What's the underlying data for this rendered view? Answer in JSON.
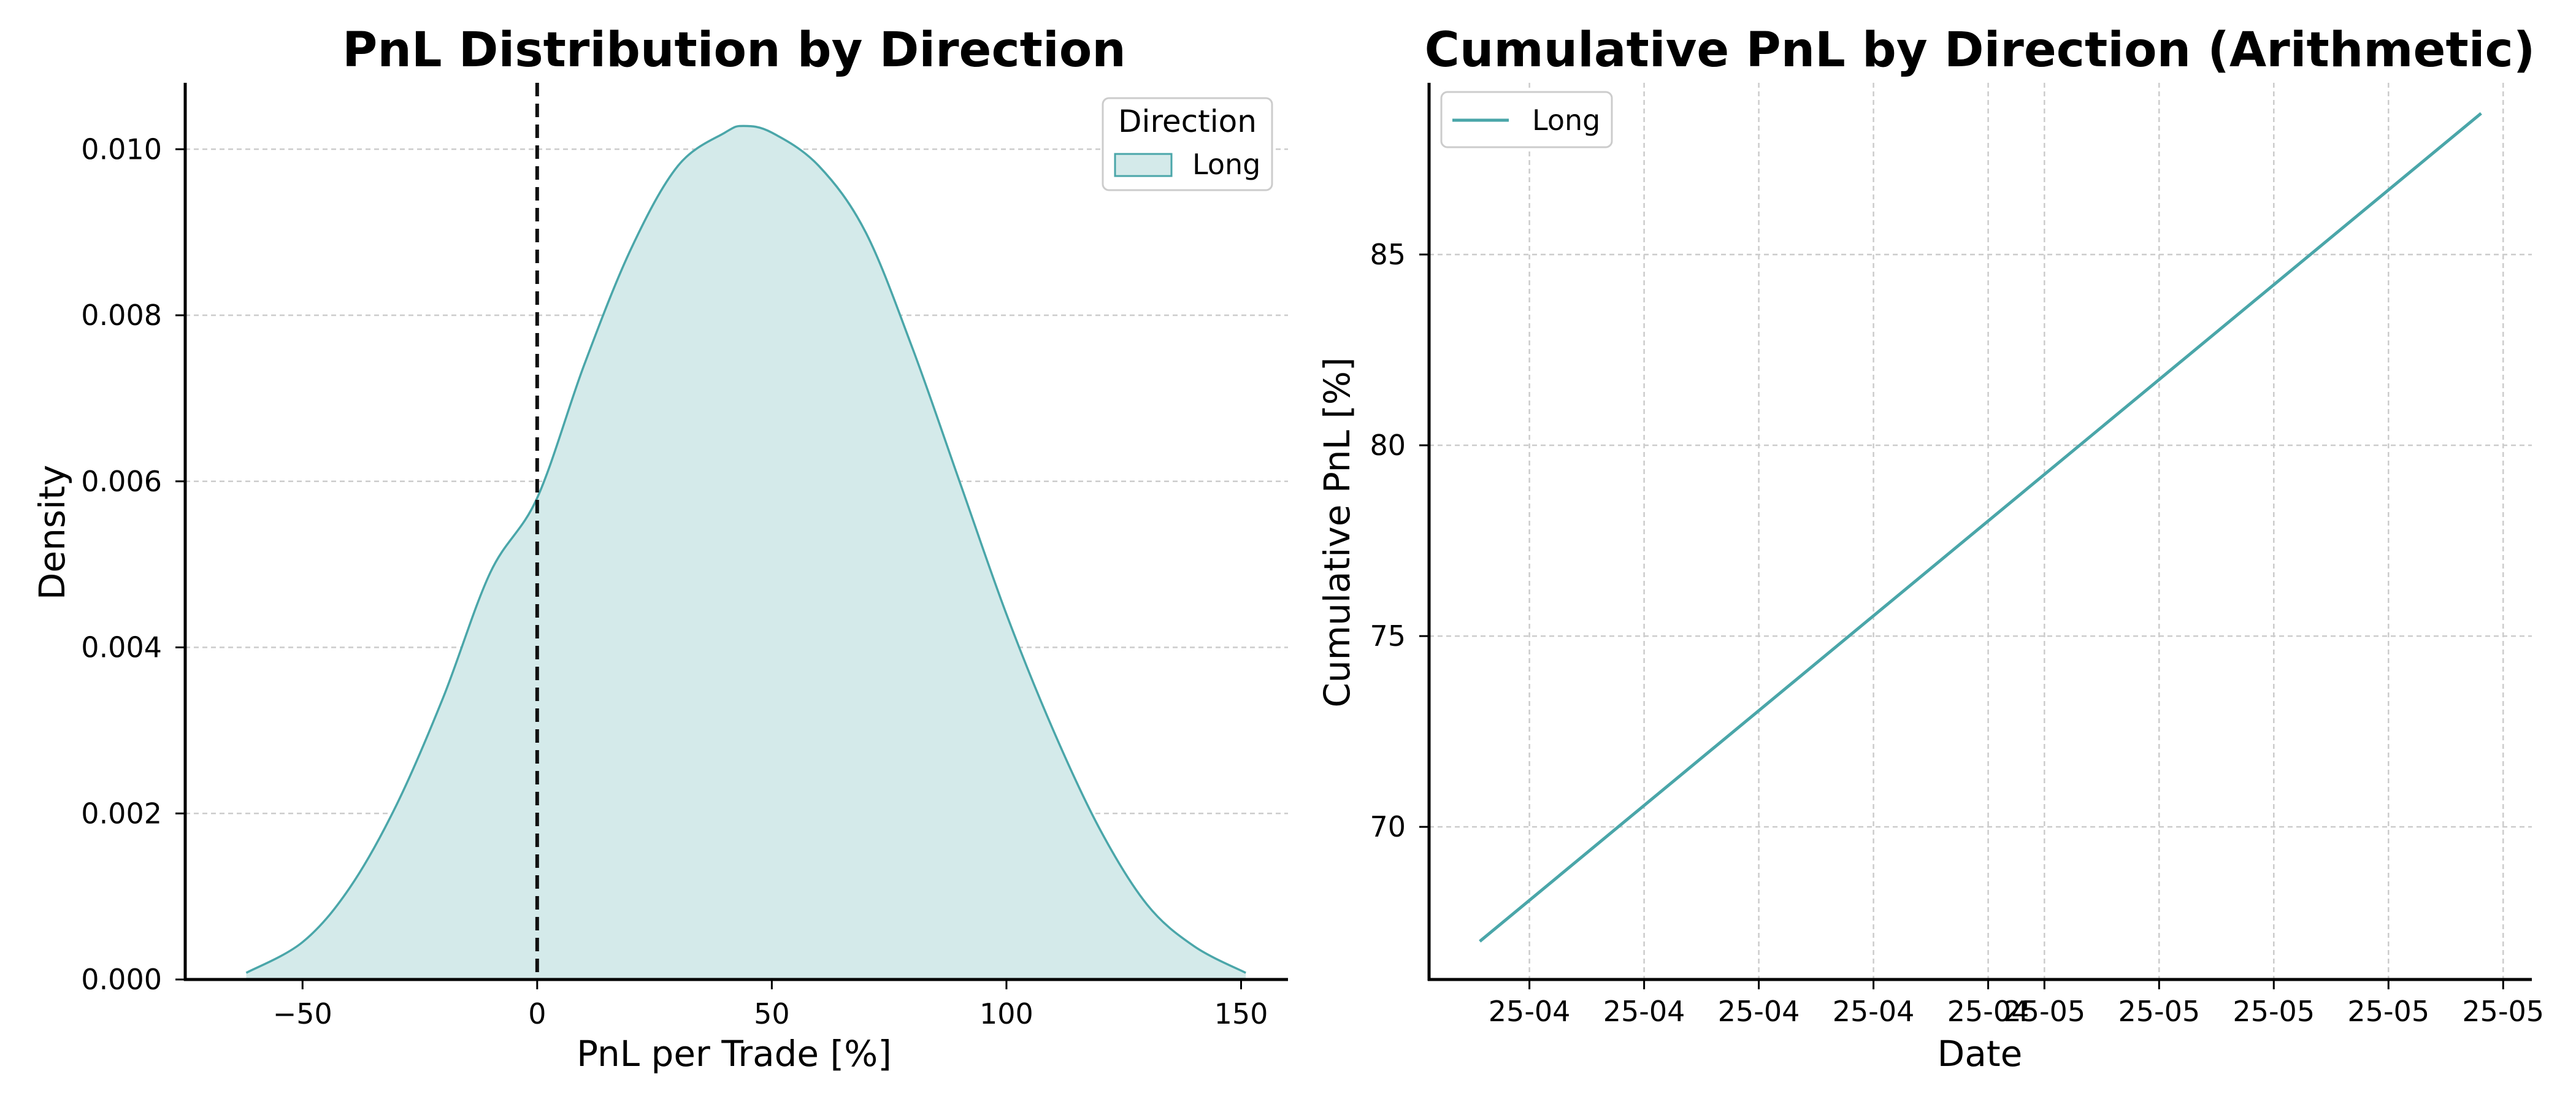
{
  "chart_data": [
    {
      "type": "area",
      "title": "PnL Distribution by Direction",
      "xlabel": "PnL per Trade [%]",
      "ylabel": "Density",
      "xlim": [
        -75,
        160
      ],
      "ylim": [
        0,
        0.0108
      ],
      "xticks": [
        -50,
        0,
        50,
        100,
        150
      ],
      "xtick_labels": [
        "−50",
        "0",
        "50",
        "100",
        "150"
      ],
      "yticks": [
        0,
        0.002,
        0.004,
        0.006,
        0.008,
        0.01
      ],
      "ytick_labels": [
        "0.000",
        "0.002",
        "0.004",
        "0.006",
        "0.008",
        "0.010"
      ],
      "grid": "y-dashed",
      "legend": {
        "title": "Direction",
        "placement": "top-right",
        "entries": [
          "Long"
        ]
      },
      "reference_line": {
        "x": 0,
        "style": "dashed",
        "color": "#111111"
      },
      "series": [
        {
          "name": "Long",
          "color": "#4aa6a9",
          "fill": "#d4eaea",
          "x": [
            -62,
            -50,
            -40,
            -30,
            -20,
            -10,
            0,
            10,
            20,
            30,
            40,
            44,
            50,
            60,
            70,
            80,
            90,
            100,
            110,
            120,
            130,
            140,
            151
          ],
          "values": [
            8e-05,
            0.00045,
            0.0011,
            0.0021,
            0.0034,
            0.0049,
            0.0058,
            0.0074,
            0.0088,
            0.0098,
            0.0102,
            0.01028,
            0.0102,
            0.0098,
            0.009,
            0.0076,
            0.006,
            0.0044,
            0.003,
            0.0018,
            0.0009,
            0.0004,
            8e-05
          ]
        }
      ]
    },
    {
      "type": "line",
      "title": "Cumulative PnL by Direction (Arithmetic)",
      "xlabel": "Date",
      "ylabel": "Cumulative PnL [%]",
      "xlim": [
        0,
        1
      ],
      "ylim": [
        66,
        89.5
      ],
      "yticks": [
        70,
        75,
        80,
        85
      ],
      "ytick_labels": [
        "70",
        "75",
        "80",
        "85"
      ],
      "xtick_positions": [
        0.091,
        0.195,
        0.299,
        0.403,
        0.507,
        0.558,
        0.662,
        0.766,
        0.87,
        0.974
      ],
      "xtick_labels": [
        "25-04",
        "25-04",
        "25-04",
        "25-04",
        "25-04",
        "25-05",
        "25-05",
        "25-05",
        "25-05",
        "25-05"
      ],
      "grid": "both-dashed",
      "legend": {
        "placement": "top-left",
        "entries": [
          "Long"
        ]
      },
      "series": [
        {
          "name": "Long",
          "color": "#4aa6a9",
          "x": [
            0.046,
            0.954
          ],
          "values": [
            67.0,
            88.7
          ]
        }
      ]
    }
  ]
}
